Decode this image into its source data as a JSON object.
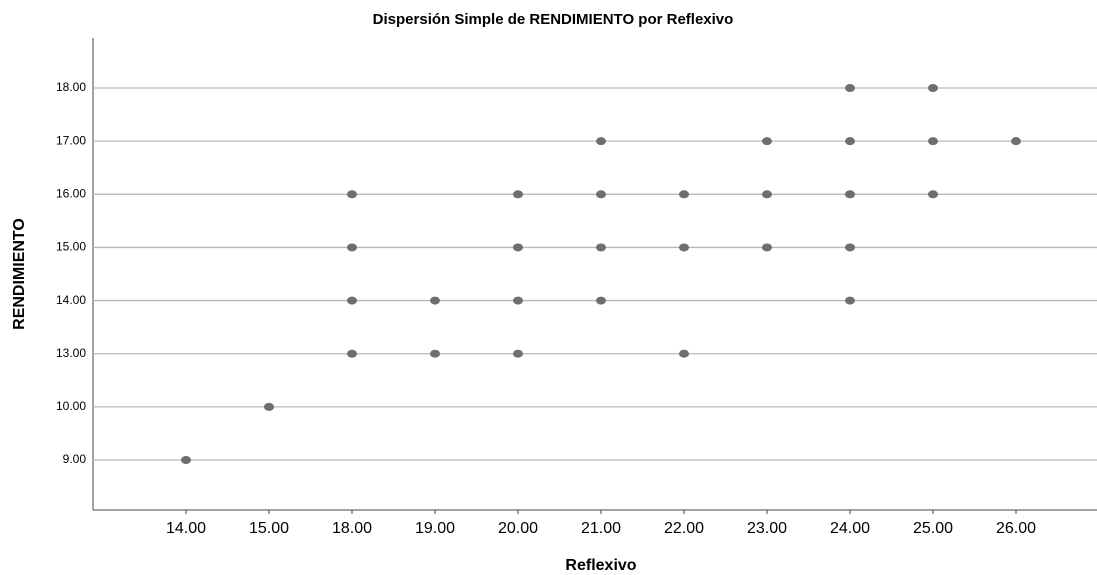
{
  "chart_data": {
    "type": "scatter",
    "title": "Dispersión Simple de RENDIMIENTO por Reflexivo",
    "x_label": "Reflexivo",
    "y_label": "RENDIMIENTO",
    "color": "#6e6e6e",
    "grid": true,
    "x": [
      14,
      15,
      18,
      18,
      18,
      18,
      19,
      19,
      20,
      20,
      20,
      20,
      21,
      21,
      21,
      21,
      22,
      22,
      22,
      23,
      23,
      23,
      24,
      24,
      24,
      24,
      24,
      25,
      25,
      25,
      26
    ],
    "y": [
      9,
      10,
      16,
      15,
      14,
      13,
      14,
      13,
      16,
      15,
      14,
      13,
      17,
      16,
      15,
      14,
      16,
      15,
      13,
      17,
      16,
      15,
      18,
      17,
      16,
      15,
      14,
      18,
      17,
      16,
      17
    ],
    "xticks": [
      {
        "value": 14,
        "label": "14.00"
      },
      {
        "value": 15,
        "label": "15.00"
      },
      {
        "value": 18,
        "label": "18.00"
      },
      {
        "value": 19,
        "label": "19.00"
      },
      {
        "value": 20,
        "label": "20.00"
      },
      {
        "value": 21,
        "label": "21.00"
      },
      {
        "value": 22,
        "label": "22.00"
      },
      {
        "value": 23,
        "label": "23.00"
      },
      {
        "value": 24,
        "label": "24.00"
      },
      {
        "value": 25,
        "label": "25.00"
      },
      {
        "value": 26,
        "label": "26.00"
      }
    ],
    "yticks": [
      {
        "value": 9,
        "label": "9.00"
      },
      {
        "value": 10,
        "label": "10.00"
      },
      {
        "value": 13,
        "label": "13.00"
      },
      {
        "value": 14,
        "label": "14.00"
      },
      {
        "value": 15,
        "label": "15.00"
      },
      {
        "value": 16,
        "label": "16.00"
      },
      {
        "value": 17,
        "label": "17.00"
      },
      {
        "value": 18,
        "label": "18.00"
      }
    ]
  }
}
